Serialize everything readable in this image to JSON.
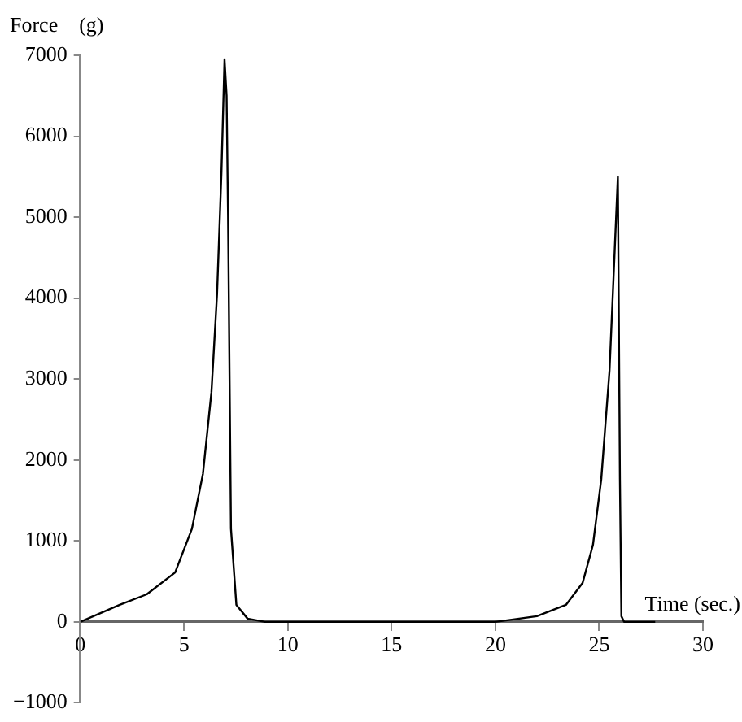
{
  "chart_data": {
    "type": "line",
    "xlabel": "Time (sec.)",
    "ylabel": "Force    (g)",
    "x": [
      0,
      1.9,
      3.2,
      4.57,
      5.38,
      5.91,
      6.32,
      6.59,
      6.8,
      6.95,
      7.05,
      7.12,
      7.26,
      7.52,
      8.06,
      8.9,
      12,
      16,
      20,
      22,
      23.4,
      24.2,
      24.7,
      25.1,
      25.5,
      25.75,
      25.9,
      26,
      26.07,
      26.2,
      27.7
    ],
    "series": [
      {
        "color": "#000000",
        "values": [
          0,
          210,
          340,
          610,
          1150,
          1830,
          2840,
          4050,
          5540,
          6950,
          6500,
          5000,
          1150,
          210,
          40,
          0,
          0,
          0,
          0,
          70,
          210,
          480,
          950,
          1760,
          3110,
          4600,
          5500,
          1760,
          70,
          0,
          0
        ]
      }
    ],
    "xlim": [
      0,
      30
    ],
    "xticks": [
      0,
      5,
      10,
      15,
      20,
      25,
      30
    ],
    "ylim": [
      -1000,
      7000
    ],
    "yticks": [
      {
        "value": -1000,
        "label": "−1000"
      },
      0,
      1000,
      2000,
      3000,
      4000,
      5000,
      6000,
      7000
    ],
    "grid": false,
    "legend": false,
    "marker": "none",
    "line_style": "solid"
  }
}
